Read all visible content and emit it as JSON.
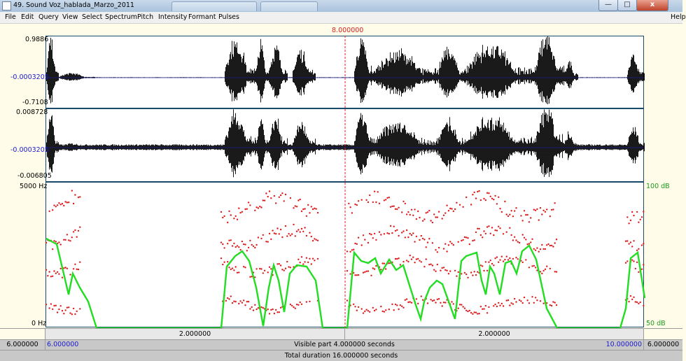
{
  "window": {
    "title": "49. Sound Voz_hablada_Marzo_2011",
    "min_label": "—",
    "max_label": "□",
    "close_label": "x"
  },
  "menu": {
    "items": [
      "File",
      "Edit",
      "Query",
      "View",
      "Select",
      "Spectrum",
      "Pitch",
      "Intensity",
      "Formant",
      "Pulses"
    ],
    "help": "Help"
  },
  "cursor": {
    "time_label": "8.000000"
  },
  "channel1": {
    "max": "0.9886",
    "mid": "-0.0003205",
    "min": "-0.7108"
  },
  "channel2": {
    "max": "0.008728",
    "mid": "-0.0003205",
    "min": "-0.006805"
  },
  "spectrogram": {
    "freq_max": "5000 Hz",
    "freq_min": "0 Hz",
    "db_max": "100 dB",
    "db_min": "50 dB"
  },
  "time_bar_1": {
    "left_segment": "2.000000",
    "right_segment": "2.000000"
  },
  "time_bar_2": {
    "outer_left": "6.000000",
    "visible_start": "6.000000",
    "visible_text": "Visible part 4.000000 seconds",
    "visible_end": "10.000000",
    "outer_right": "6.000000"
  },
  "time_bar_3": {
    "total_text": "Total duration 16.000000 seconds"
  },
  "colors": {
    "waveform": "#000000",
    "formant_dots": "#dd1a1a",
    "intensity_line": "#22dd22",
    "cursor": "#e02020",
    "axis_blue": "#1a1ad0",
    "border": "#1a4a6a"
  }
}
